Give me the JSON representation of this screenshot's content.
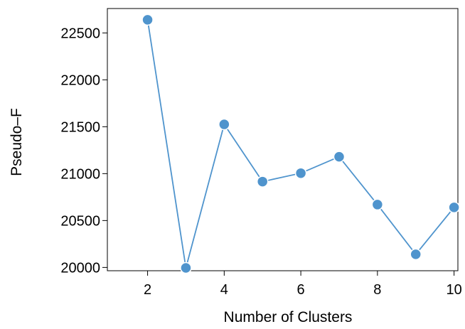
{
  "chart_data": {
    "type": "line",
    "title": "",
    "xlabel": "Number of Clusters",
    "ylabel": "Pseudo–F",
    "x": [
      2,
      3,
      4,
      5,
      6,
      7,
      8,
      9,
      10
    ],
    "series": [
      {
        "values": [
          22640,
          19995,
          21525,
          20915,
          21005,
          21180,
          20670,
          20140,
          20640
        ]
      }
    ],
    "x_ticks": [
      2,
      4,
      6,
      8,
      10
    ],
    "x_tick_labels": [
      "2",
      "4",
      "6",
      "8",
      "10"
    ],
    "y_ticks": [
      20000,
      20500,
      21000,
      21500,
      22000,
      22500
    ],
    "y_tick_labels": [
      "20000",
      "20500",
      "21000",
      "21500",
      "22000",
      "22500"
    ],
    "xlim": [
      0.95,
      10.1
    ],
    "ylim": [
      19965,
      22760
    ],
    "grid": false,
    "colors": {
      "line": "#4f94cd",
      "marker": "#4f94cd",
      "marker_edge": "#ffffff"
    }
  }
}
